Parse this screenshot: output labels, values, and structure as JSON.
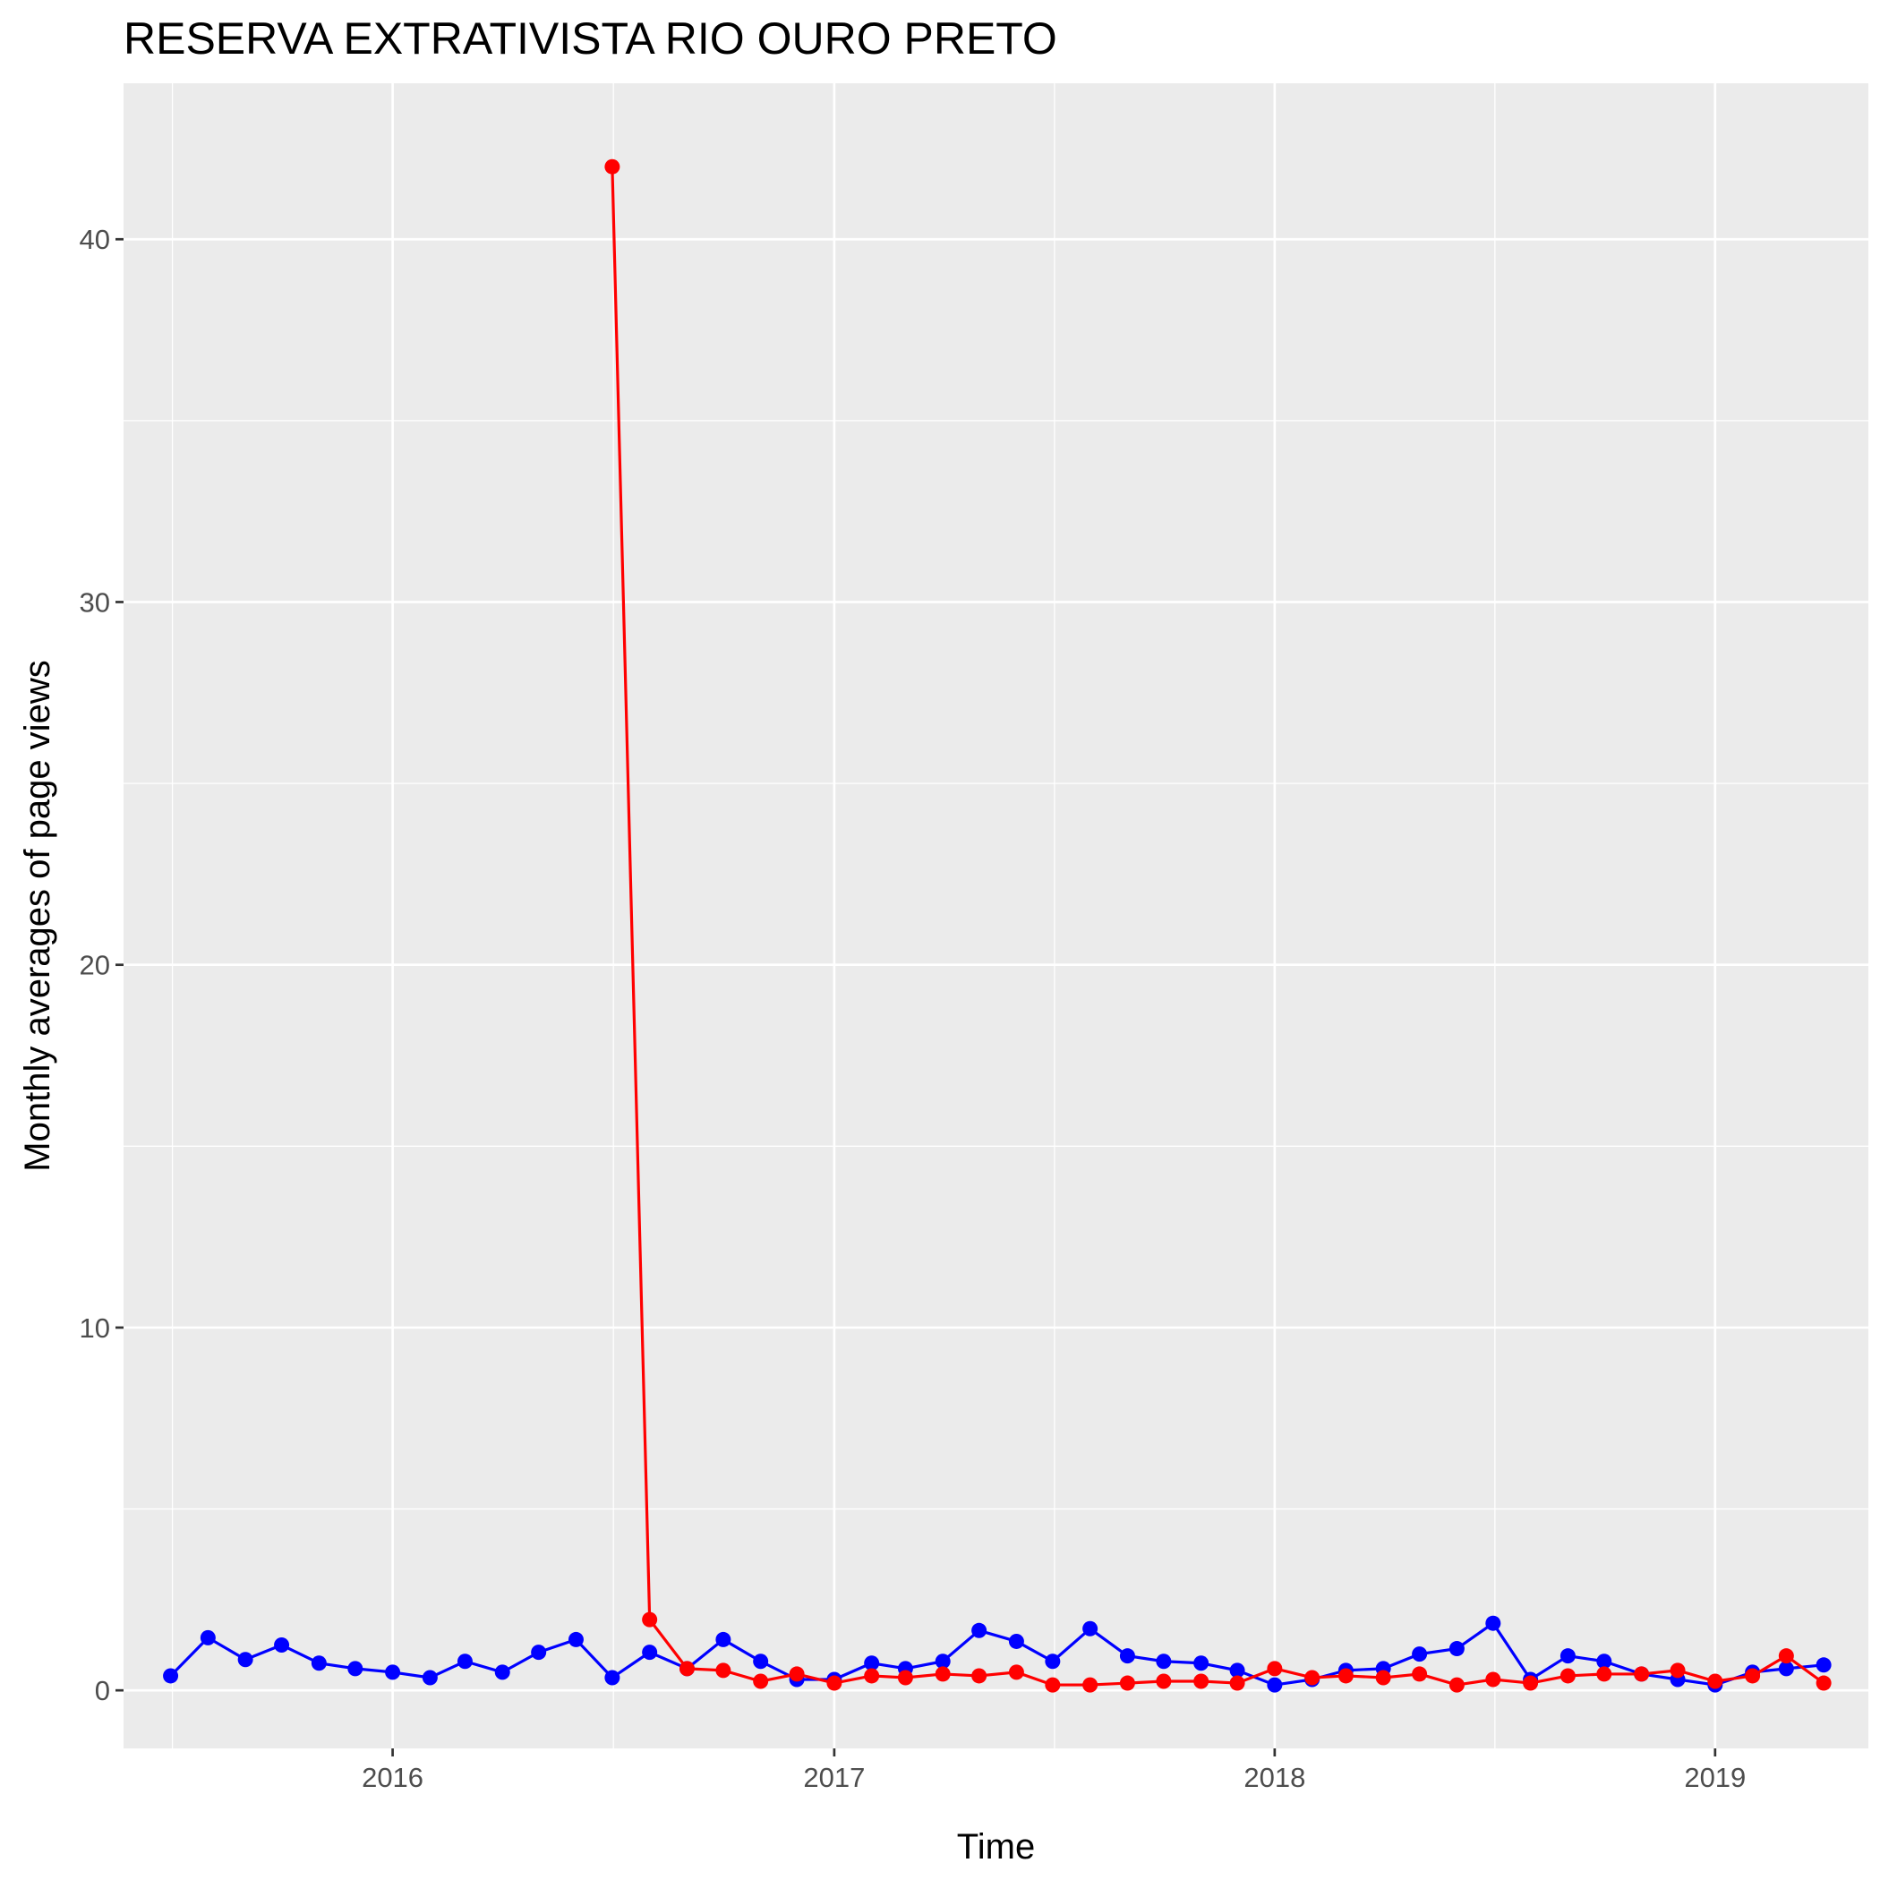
{
  "chart_data": {
    "type": "line",
    "title": "RESERVA EXTRATIVISTA RIO OURO PRETO",
    "xlabel": "Time",
    "ylabel": "Monthly averages of page views",
    "x_axis_type": "date",
    "xlim": [
      "2015-05-23",
      "2019-05-08"
    ],
    "ylim": [
      -1.6,
      44.3
    ],
    "x_ticks": [
      "2016",
      "2017",
      "2018",
      "2019"
    ],
    "y_ticks": [
      0,
      10,
      20,
      30,
      40
    ],
    "grid": true,
    "legend": "none",
    "series": [
      {
        "color": "#0000ff",
        "x": [
          "2015-07-01",
          "2015-08-01",
          "2015-09-01",
          "2015-10-01",
          "2015-11-01",
          "2015-12-01",
          "2016-01-01",
          "2016-02-01",
          "2016-03-01",
          "2016-04-01",
          "2016-05-01",
          "2016-06-01",
          "2016-07-01",
          "2016-08-01",
          "2016-09-01",
          "2016-10-01",
          "2016-11-01",
          "2016-12-01",
          "2017-01-01",
          "2017-02-01",
          "2017-03-01",
          "2017-04-01",
          "2017-05-01",
          "2017-06-01",
          "2017-07-01",
          "2017-08-01",
          "2017-09-01",
          "2017-10-01",
          "2017-11-01",
          "2017-12-01",
          "2018-01-01",
          "2018-02-01",
          "2018-03-01",
          "2018-04-01",
          "2018-05-01",
          "2018-06-01",
          "2018-07-01",
          "2018-08-01",
          "2018-09-01",
          "2018-10-01",
          "2018-11-01",
          "2018-12-01",
          "2019-01-01",
          "2019-02-01",
          "2019-03-01",
          "2019-04-01"
        ],
        "values": [
          0.4,
          1.45,
          0.85,
          1.25,
          0.75,
          0.6,
          0.5,
          0.35,
          0.8,
          0.5,
          1.05,
          1.4,
          0.35,
          1.05,
          0.6,
          1.4,
          0.8,
          0.3,
          0.3,
          0.75,
          0.6,
          0.8,
          1.65,
          1.35,
          0.8,
          1.7,
          0.95,
          0.8,
          0.75,
          0.55,
          0.15,
          0.3,
          0.55,
          0.6,
          1.0,
          1.15,
          1.85,
          0.3,
          0.95,
          0.8,
          0.45,
          0.3,
          0.15,
          0.5,
          0.6,
          0.7
        ]
      },
      {
        "color": "#ff0000",
        "x": [
          "2016-07-01",
          "2016-08-01",
          "2016-09-01",
          "2016-10-01",
          "2016-11-01",
          "2016-12-01",
          "2017-01-01",
          "2017-02-01",
          "2017-03-01",
          "2017-04-01",
          "2017-05-01",
          "2017-06-01",
          "2017-07-01",
          "2017-08-01",
          "2017-09-01",
          "2017-10-01",
          "2017-11-01",
          "2017-12-01",
          "2018-01-01",
          "2018-02-01",
          "2018-03-01",
          "2018-04-01",
          "2018-05-01",
          "2018-06-01",
          "2018-07-01",
          "2018-08-01",
          "2018-09-01",
          "2018-10-01",
          "2018-11-01",
          "2018-12-01",
          "2019-01-01",
          "2019-02-01",
          "2019-03-01",
          "2019-04-01"
        ],
        "values": [
          42.0,
          1.95,
          0.6,
          0.55,
          0.25,
          0.45,
          0.2,
          0.4,
          0.35,
          0.45,
          0.4,
          0.5,
          0.15,
          0.15,
          0.2,
          0.25,
          0.25,
          0.2,
          0.6,
          0.35,
          0.4,
          0.35,
          0.45,
          0.15,
          0.3,
          0.2,
          0.4,
          0.45,
          0.45,
          0.55,
          0.25,
          0.4,
          0.95,
          0.2
        ]
      }
    ]
  }
}
